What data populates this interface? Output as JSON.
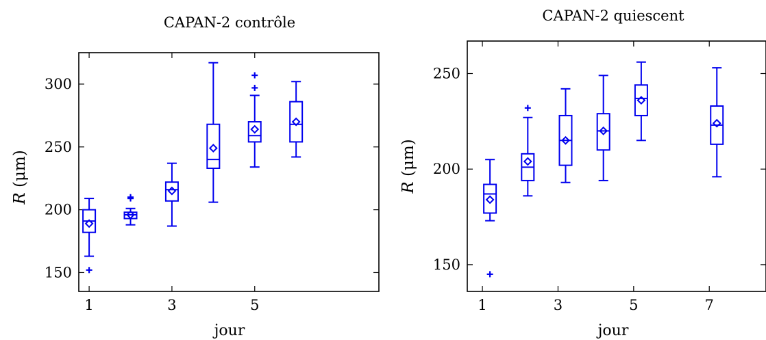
{
  "chart_data": [
    {
      "type": "boxplot",
      "title": "CAPAN-2 contrôle",
      "xlabel": "jour",
      "ylabel_var": "R",
      "ylabel_unit": "(μm)",
      "xlim": [
        0.75,
        8.0
      ],
      "ylim": [
        135,
        325
      ],
      "xticks": [
        1,
        3,
        5
      ],
      "yticks": [
        150,
        200,
        250,
        300
      ],
      "color": "#0000ee",
      "boxes": [
        {
          "x": 1,
          "whisker_low": 163,
          "q1": 182,
          "median": 191,
          "q3": 200,
          "whisker_high": 209,
          "mean": 189,
          "outliers": [
            152
          ]
        },
        {
          "x": 2,
          "whisker_low": 188,
          "q1": 193,
          "median": 196,
          "q3": 198,
          "whisker_high": 201,
          "mean": 196,
          "outliers": [
            209,
            210
          ]
        },
        {
          "x": 3,
          "whisker_low": 187,
          "q1": 207,
          "median": 216,
          "q3": 222,
          "whisker_high": 237,
          "mean": 215,
          "outliers": []
        },
        {
          "x": 4,
          "whisker_low": 206,
          "q1": 233,
          "median": 240,
          "q3": 268,
          "whisker_high": 317,
          "mean": 249,
          "outliers": []
        },
        {
          "x": 5,
          "whisker_low": 234,
          "q1": 254,
          "median": 259,
          "q3": 270,
          "whisker_high": 291,
          "mean": 264,
          "outliers": [
            297,
            307
          ]
        },
        {
          "x": 6,
          "whisker_low": 242,
          "q1": 254,
          "median": 268,
          "q3": 286,
          "whisker_high": 302,
          "mean": 270,
          "outliers": []
        }
      ]
    },
    {
      "type": "boxplot",
      "title": "CAPAN-2 quiescent",
      "xlabel": "jour",
      "ylabel_var": "R",
      "ylabel_unit": "(μm)",
      "xlim": [
        0.6,
        8.5
      ],
      "ylim": [
        136,
        267
      ],
      "xticks": [
        1,
        3,
        5,
        7
      ],
      "yticks": [
        150,
        200,
        250
      ],
      "color": "#0000ee",
      "boxes": [
        {
          "x": 1.2,
          "whisker_low": 173,
          "q1": 177,
          "median": 187,
          "q3": 192,
          "whisker_high": 205,
          "mean": 184,
          "outliers": [
            145
          ]
        },
        {
          "x": 2.2,
          "whisker_low": 186,
          "q1": 194,
          "median": 201,
          "q3": 208,
          "whisker_high": 227,
          "mean": 204,
          "outliers": [
            232
          ]
        },
        {
          "x": 3.2,
          "whisker_low": 193,
          "q1": 202,
          "median": 215,
          "q3": 228,
          "whisker_high": 242,
          "mean": 215,
          "outliers": []
        },
        {
          "x": 4.2,
          "whisker_low": 194,
          "q1": 210,
          "median": 220,
          "q3": 229,
          "whisker_high": 249,
          "mean": 220,
          "outliers": []
        },
        {
          "x": 5.2,
          "whisker_low": 215,
          "q1": 228,
          "median": 237,
          "q3": 244,
          "whisker_high": 256,
          "mean": 236,
          "outliers": []
        },
        {
          "x": 7.2,
          "whisker_low": 196,
          "q1": 213,
          "median": 223,
          "q3": 233,
          "whisker_high": 253,
          "mean": 224,
          "outliers": []
        }
      ]
    }
  ]
}
